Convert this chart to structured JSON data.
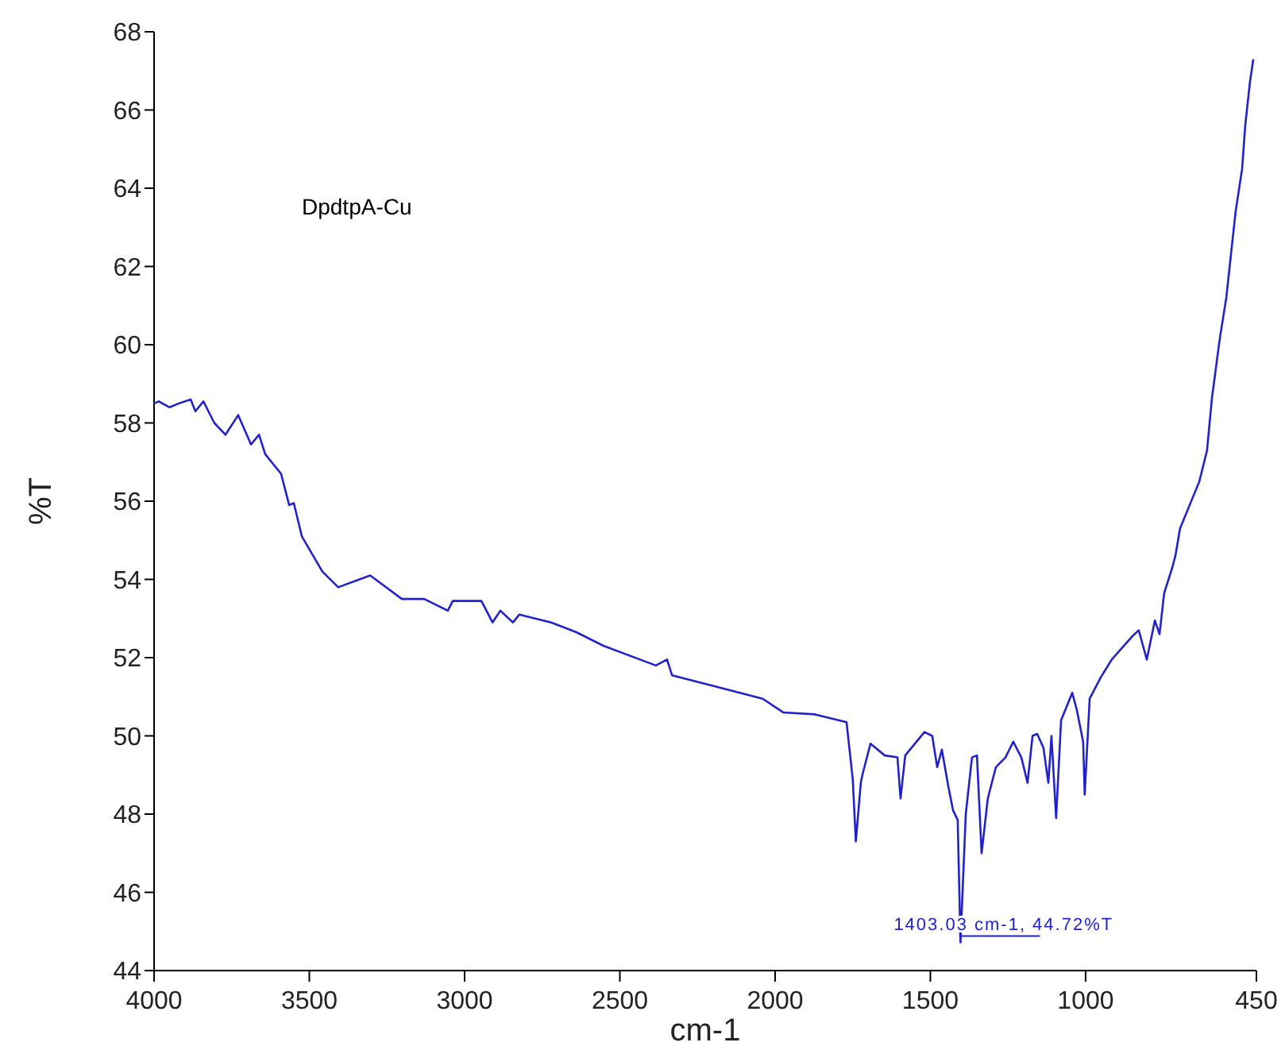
{
  "chart_data": {
    "type": "line",
    "xlabel": "cm-1",
    "ylabel": "%T",
    "xlim": [
      4000,
      450
    ],
    "ylim": [
      44,
      68
    ],
    "xticks": [
      4000,
      3500,
      3000,
      2500,
      2000,
      1500,
      1000,
      450
    ],
    "yticks": [
      44,
      46,
      48,
      50,
      52,
      54,
      56,
      58,
      60,
      62,
      64,
      66,
      68
    ],
    "grid": false,
    "annotations": [
      "DpdtpA-Cu",
      {
        "text": "1403.03 cm-1, 44.72%T",
        "x": 1403.03,
        "y": 44.72
      }
    ],
    "series": [
      {
        "color": "#2222cc",
        "x": [
          4000,
          3985,
          3950,
          3920,
          3882,
          3867,
          3841,
          3806,
          3770,
          3729,
          3688,
          3662,
          3642,
          3591,
          3565,
          3550,
          3524,
          3458,
          3407,
          3304,
          3202,
          3130,
          3054,
          3038,
          2946,
          2910,
          2885,
          2844,
          2824,
          2721,
          2640,
          2552,
          2384,
          2348,
          2332,
          2210,
          2040,
          1974,
          1872,
          1770,
          1750,
          1740,
          1724,
          1719,
          1693,
          1647,
          1606,
          1596,
          1581,
          1519,
          1494,
          1478,
          1463,
          1442,
          1427,
          1412,
          1403,
          1386,
          1366,
          1350,
          1335,
          1315,
          1289,
          1258,
          1233,
          1207,
          1187,
          1171,
          1156,
          1136,
          1120,
          1110,
          1095,
          1079,
          1043,
          1028,
          1008,
          1003,
          987,
          951,
          916,
          849,
          829,
          803,
          777,
          762,
          747,
          721,
          711,
          696,
          634,
          609,
          593,
          568,
          547,
          532,
          517,
          496,
          486,
          471,
          460
        ],
        "values": [
          58.5,
          58.55,
          58.4,
          58.5,
          58.6,
          58.3,
          58.55,
          58.0,
          57.7,
          58.2,
          57.45,
          57.7,
          57.2,
          56.7,
          55.9,
          55.95,
          55.1,
          54.2,
          53.8,
          54.1,
          53.5,
          53.5,
          53.2,
          53.45,
          53.45,
          52.9,
          53.2,
          52.9,
          53.1,
          52.9,
          52.65,
          52.3,
          51.8,
          51.95,
          51.55,
          51.3,
          50.95,
          50.6,
          50.55,
          50.35,
          48.9,
          47.3,
          48.8,
          49.0,
          49.8,
          49.5,
          49.45,
          48.4,
          49.5,
          50.1,
          50.0,
          49.2,
          49.65,
          48.7,
          48.1,
          47.85,
          44.72,
          48.0,
          49.45,
          49.5,
          47.0,
          48.4,
          49.2,
          49.45,
          49.85,
          49.45,
          48.8,
          50.0,
          50.05,
          49.7,
          48.8,
          50.0,
          47.9,
          50.4,
          51.1,
          50.65,
          49.85,
          48.5,
          50.95,
          51.5,
          51.95,
          52.55,
          52.7,
          51.95,
          52.95,
          52.6,
          53.65,
          54.3,
          54.6,
          55.3,
          56.5,
          57.3,
          58.65,
          60.15,
          61.2,
          62.3,
          63.4,
          64.5,
          65.6,
          66.7,
          67.3
        ]
      }
    ]
  }
}
